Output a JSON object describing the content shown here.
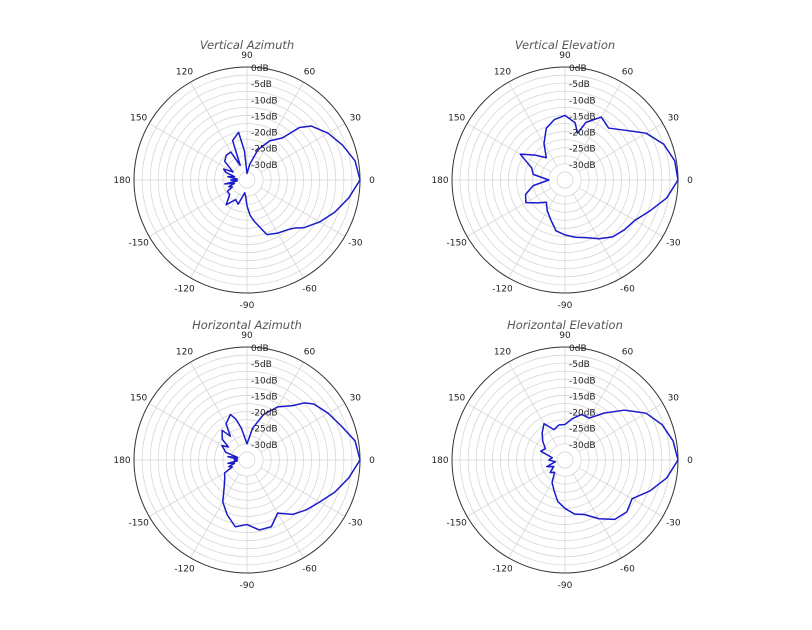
{
  "colors": {
    "pattern": "#1a1acc",
    "outer_ring": "#333333",
    "grid": "#d6d6d6"
  },
  "chart_data": [
    {
      "type": "polar-line",
      "title": "Vertical Azimuth",
      "angle_ticks": [
        "90",
        "60",
        "30",
        "0",
        "-30",
        "-60",
        "-90",
        "-120",
        "-150",
        "180",
        "150",
        "120"
      ],
      "radial_ticks": [
        "0dB",
        "-5dB",
        "-10dB",
        "-15dB",
        "-20dB",
        "-25dB",
        "-30dB"
      ],
      "rlim": [
        -35,
        0
      ],
      "angle_deg": [
        0,
        10,
        20,
        30,
        40,
        45,
        50,
        60,
        70,
        80,
        90,
        95,
        100,
        110,
        115,
        120,
        130,
        140,
        150,
        155,
        160,
        165,
        170,
        175,
        180,
        185,
        190,
        195,
        200,
        205,
        210,
        220,
        230,
        240,
        250,
        260,
        265,
        270,
        275,
        280,
        290,
        300,
        310,
        315,
        320,
        330,
        340,
        350,
        360
      ],
      "gain_db": [
        0,
        -1,
        -3.5,
        -6,
        -9,
        -12,
        -18,
        -21,
        -25,
        -30,
        -33,
        -26,
        -20,
        -22,
        -30,
        -25,
        -25,
        -26,
        -30,
        -27,
        -28,
        -31,
        -29,
        -32,
        -30,
        -32,
        -28,
        -31,
        -29,
        -30,
        -28,
        -28,
        -25,
        -28,
        -27,
        -31,
        -30,
        -27,
        -24,
        -22,
        -17,
        -16,
        -15,
        -14,
        -12,
        -9,
        -6,
        -3,
        0
      ]
    },
    {
      "type": "polar-line",
      "title": "Vertical Elevation",
      "angle_ticks": [
        "90",
        "60",
        "30",
        "0",
        "-30",
        "-60",
        "-90",
        "-120",
        "-150",
        "180",
        "150",
        "120"
      ],
      "radial_ticks": [
        "0dB",
        "-5dB",
        "-10dB",
        "-15dB",
        "-20dB",
        "-25dB",
        "-30dB"
      ],
      "rlim": [
        -35,
        0
      ],
      "angle_deg": [
        0,
        10,
        20,
        30,
        40,
        50,
        60,
        70,
        75,
        80,
        90,
        100,
        110,
        120,
        130,
        140,
        150,
        160,
        170,
        180,
        190,
        200,
        210,
        220,
        230,
        240,
        250,
        260,
        270,
        280,
        290,
        300,
        310,
        320,
        330,
        340,
        350,
        360
      ],
      "gain_db": [
        0,
        -0.5,
        -2.5,
        -6,
        -11,
        -14,
        -12.5,
        -16,
        -20,
        -17,
        -15,
        -16,
        -18,
        -22,
        -26,
        -23,
        -19,
        -24,
        -25,
        -30,
        -25,
        -22,
        -21,
        -24,
        -26,
        -24,
        -22,
        -19,
        -18,
        -17,
        -16,
        -14,
        -12,
        -11,
        -10,
        -7,
        -3,
        0
      ]
    },
    {
      "type": "polar-line",
      "title": "Horizontal Azimuth",
      "angle_ticks": [
        "90",
        "60",
        "30",
        "0",
        "-30",
        "-60",
        "-90",
        "-120",
        "-150",
        "180",
        "150",
        "120"
      ],
      "radial_ticks": [
        "0dB",
        "-5dB",
        "-10dB",
        "-15dB",
        "-20dB",
        "-25dB",
        "-30dB"
      ],
      "rlim": [
        -35,
        0
      ],
      "angle_deg": [
        0,
        10,
        20,
        30,
        40,
        45,
        50,
        60,
        70,
        80,
        90,
        100,
        105,
        110,
        120,
        125,
        130,
        140,
        145,
        150,
        160,
        165,
        170,
        175,
        180,
        185,
        190,
        195,
        200,
        205,
        210,
        220,
        230,
        240,
        250,
        260,
        270,
        280,
        290,
        300,
        310,
        320,
        330,
        340,
        350,
        360
      ],
      "gain_db": [
        0,
        -1,
        -4,
        -6,
        -8,
        -10,
        -13,
        -16,
        -20,
        -25,
        -30,
        -25,
        -22,
        -20,
        -22,
        -26,
        -23,
        -25,
        -28,
        -26,
        -28,
        -32,
        -29,
        -32,
        -31,
        -32,
        -29,
        -31,
        -29,
        -30,
        -27,
        -26,
        -24,
        -20,
        -17,
        -14,
        -15,
        -13,
        -13,
        -16,
        -13,
        -11,
        -9,
        -6,
        -3,
        0
      ]
    },
    {
      "type": "polar-line",
      "title": "Horizontal Elevation",
      "angle_ticks": [
        "90",
        "60",
        "30",
        "0",
        "-30",
        "-60",
        "-90",
        "-120",
        "-150",
        "180",
        "150",
        "120"
      ],
      "radial_ticks": [
        "0dB",
        "-5dB",
        "-10dB",
        "-15dB",
        "-20dB",
        "-25dB",
        "-30dB"
      ],
      "rlim": [
        -35,
        0
      ],
      "angle_deg": [
        0,
        10,
        20,
        30,
        40,
        50,
        60,
        70,
        80,
        90,
        100,
        110,
        120,
        130,
        140,
        150,
        160,
        170,
        180,
        190,
        200,
        210,
        220,
        230,
        240,
        250,
        260,
        270,
        280,
        290,
        300,
        310,
        320,
        330,
        340,
        350,
        360
      ],
      "gain_db": [
        0,
        -1,
        -3,
        -6,
        -11,
        -16,
        -20,
        -20,
        -22,
        -24,
        -24,
        -25,
        -22,
        -24,
        -26,
        -28,
        -27,
        -31,
        -30,
        -32,
        -29,
        -31,
        -29,
        -30,
        -27,
        -25,
        -22,
        -20,
        -18,
        -17,
        -14,
        -11,
        -10,
        -11,
        -7,
        -3,
        0
      ]
    }
  ]
}
